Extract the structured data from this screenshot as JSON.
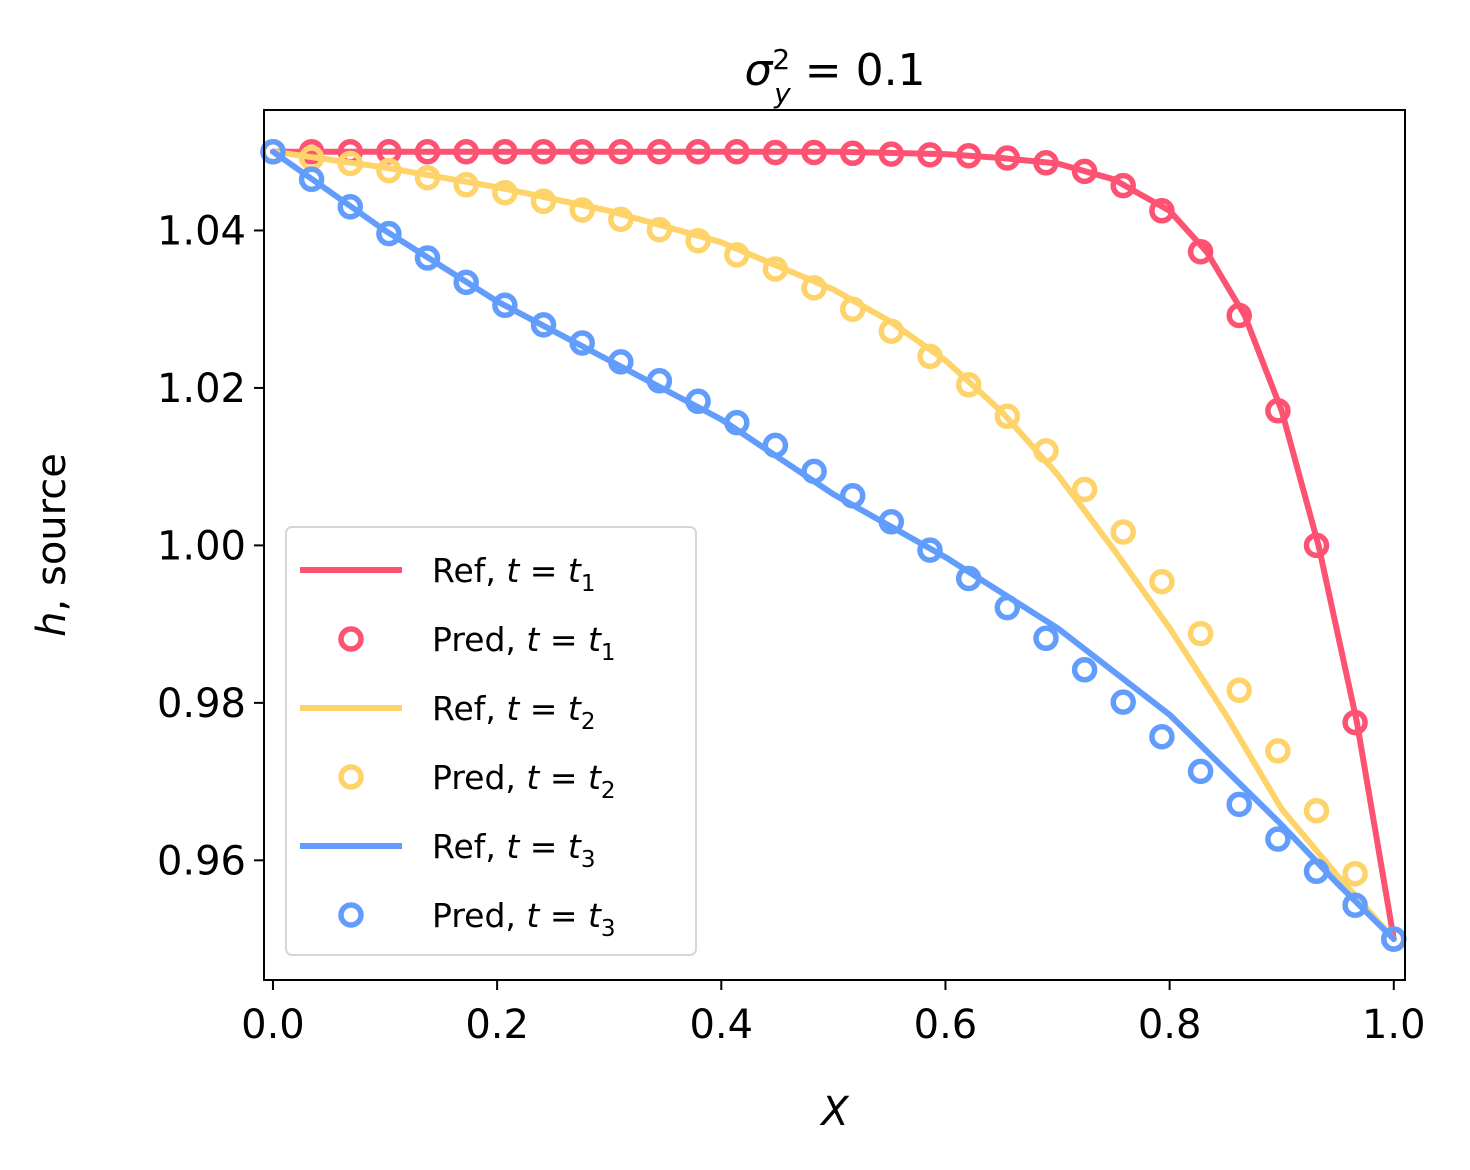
{
  "chart_data": {
    "type": "line",
    "title": {
      "main": "σ",
      "sup": "2",
      "sub": "y",
      "rest": " = 0.1"
    },
    "xlabel": "X",
    "ylabel": {
      "italic": "h",
      "rest": ", source"
    },
    "xlim": [
      -0.008,
      1.01
    ],
    "ylim": [
      0.9448,
      1.0553
    ],
    "xticks": [
      0.0,
      0.2,
      0.4,
      0.6,
      0.8,
      1.0
    ],
    "xtick_labels": [
      "0.0",
      "0.2",
      "0.4",
      "0.6",
      "0.8",
      "1.0"
    ],
    "yticks": [
      0.96,
      0.98,
      1.0,
      1.02,
      1.04
    ],
    "ytick_labels": [
      "0.96",
      "0.98",
      "1.00",
      "1.02",
      "1.04"
    ],
    "grid": false,
    "legend_position": "lower-left",
    "series": [
      {
        "name": "Ref, t = t1",
        "label_main": "Ref, ",
        "label_math": "t = t",
        "label_sub": "1",
        "kind": "line",
        "color": "#fe5273",
        "x": [
          0,
          0.1,
          0.2,
          0.3,
          0.4,
          0.5,
          0.6,
          0.65,
          0.7,
          0.75,
          0.8,
          0.833,
          0.867,
          0.9,
          0.933,
          0.967,
          1.0
        ],
        "y": [
          1.05,
          1.05,
          1.05,
          1.05,
          1.05,
          1.05,
          1.0497,
          1.0492,
          1.0485,
          1.0465,
          1.0425,
          1.0373,
          1.0292,
          1.0171,
          0.9999,
          0.9776,
          0.95
        ]
      },
      {
        "name": "Pred, t = t1",
        "label_main": "Pred, ",
        "label_math": "t = t",
        "label_sub": "1",
        "kind": "marker",
        "color": "#fe5273",
        "x": [
          0,
          0.0345,
          0.069,
          0.1034,
          0.1379,
          0.1724,
          0.2069,
          0.2414,
          0.2759,
          0.3103,
          0.3448,
          0.3793,
          0.4138,
          0.4483,
          0.4828,
          0.5172,
          0.5517,
          0.5862,
          0.6207,
          0.6552,
          0.6897,
          0.7241,
          0.7586,
          0.7931,
          0.8276,
          0.8621,
          0.8966,
          0.931,
          0.9655,
          1.0
        ],
        "y": [
          1.05,
          1.05,
          1.05,
          1.05,
          1.05,
          1.05,
          1.05,
          1.05,
          1.05,
          1.05,
          1.05,
          1.05,
          1.05,
          1.0499,
          1.0499,
          1.0498,
          1.0497,
          1.0496,
          1.0495,
          1.0492,
          1.0486,
          1.0475,
          1.0457,
          1.0425,
          1.0373,
          1.0292,
          1.0171,
          1.0,
          0.9775,
          0.95
        ]
      },
      {
        "name": "Ref, t = t2",
        "label_main": "Ref, ",
        "label_math": "t = t",
        "label_sub": "2",
        "kind": "line",
        "color": "#fed46a",
        "x": [
          0,
          0.1,
          0.2,
          0.3,
          0.4,
          0.5,
          0.55,
          0.6,
          0.65,
          0.7,
          0.75,
          0.8,
          0.85,
          0.9,
          0.95,
          1.0
        ],
        "y": [
          1.05,
          1.048,
          1.0455,
          1.0425,
          1.0385,
          1.0325,
          1.0285,
          1.0235,
          1.017,
          1.009,
          0.9995,
          0.9895,
          0.9785,
          0.9665,
          0.958,
          0.95
        ]
      },
      {
        "name": "Pred, t = t2",
        "label_main": "Pred, ",
        "label_math": "t = t",
        "label_sub": "2",
        "kind": "marker",
        "color": "#fed46a",
        "x": [
          0,
          0.0345,
          0.069,
          0.1034,
          0.1379,
          0.1724,
          0.2069,
          0.2414,
          0.2759,
          0.3103,
          0.3448,
          0.3793,
          0.4138,
          0.4483,
          0.4828,
          0.5172,
          0.5517,
          0.5862,
          0.6207,
          0.6552,
          0.6897,
          0.7241,
          0.7586,
          0.7931,
          0.8276,
          0.8621,
          0.8966,
          0.931,
          0.9655,
          1.0
        ],
        "y": [
          1.05,
          1.0492,
          1.0485,
          1.0476,
          1.0467,
          1.0458,
          1.0448,
          1.0437,
          1.0426,
          1.0414,
          1.0401,
          1.0387,
          1.0369,
          1.0351,
          1.0327,
          1.03,
          1.0272,
          1.024,
          1.0204,
          1.0164,
          1.012,
          1.0071,
          1.0017,
          0.9954,
          0.9888,
          0.9816,
          0.9739,
          0.9663,
          0.9583,
          0.95
        ]
      },
      {
        "name": "Ref, t = t3",
        "label_main": "Ref, ",
        "label_math": "t = t",
        "label_sub": "3",
        "kind": "line",
        "color": "#629dfd",
        "x": [
          0,
          0.1,
          0.2,
          0.3,
          0.4,
          0.5,
          0.6,
          0.7,
          0.8,
          0.9,
          0.95,
          1.0
        ],
        "y": [
          1.05,
          1.04,
          1.031,
          1.0235,
          1.016,
          1.0065,
          0.9985,
          0.9895,
          0.9785,
          0.9645,
          0.957,
          0.95
        ]
      },
      {
        "name": "Pred, t = t3",
        "label_main": "Pred, ",
        "label_math": "t = t",
        "label_sub": "3",
        "kind": "marker",
        "color": "#629dfd",
        "x": [
          0,
          0.0345,
          0.069,
          0.1034,
          0.1379,
          0.1724,
          0.2069,
          0.2414,
          0.2759,
          0.3103,
          0.3448,
          0.3793,
          0.4138,
          0.4483,
          0.4828,
          0.5172,
          0.5517,
          0.5862,
          0.6207,
          0.6552,
          0.6897,
          0.7241,
          0.7586,
          0.7931,
          0.8276,
          0.8621,
          0.8966,
          0.931,
          0.9655,
          1.0
        ],
        "y": [
          1.05,
          1.0465,
          1.043,
          1.0396,
          1.0365,
          1.0334,
          1.0305,
          1.028,
          1.0257,
          1.0233,
          1.0209,
          1.0183,
          1.0156,
          1.0127,
          1.0094,
          1.0063,
          1.003,
          0.9994,
          0.9958,
          0.9921,
          0.9882,
          0.9842,
          0.9801,
          0.9757,
          0.9713,
          0.9671,
          0.9627,
          0.9586,
          0.9543,
          0.95
        ]
      }
    ]
  }
}
